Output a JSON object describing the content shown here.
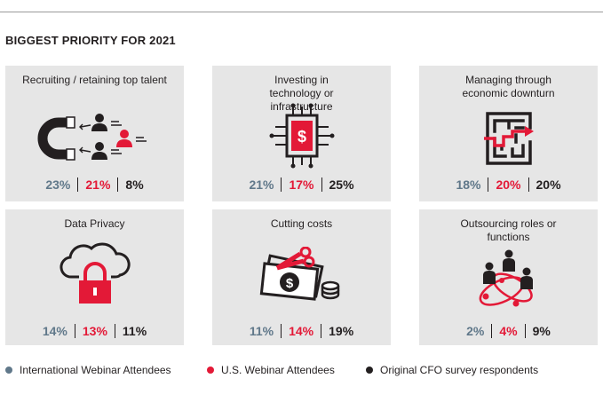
{
  "heading": "BIGGEST PRIORITY FOR 2021",
  "colors": {
    "international": "#60788a",
    "us": "#e31937",
    "original": "#231f20",
    "panel_bg": "#e6e6e6"
  },
  "chart_data": {
    "type": "table",
    "title": "BIGGEST PRIORITY FOR 2021",
    "unit": "%",
    "series": [
      {
        "name": "International Webinar Attendees",
        "color": "#60788a",
        "values": [
          23,
          21,
          18,
          14,
          11,
          2
        ]
      },
      {
        "name": "U.S. Webinar Attendees",
        "color": "#e31937",
        "values": [
          21,
          17,
          20,
          13,
          14,
          4
        ]
      },
      {
        "name": "Original CFO survey respondents",
        "color": "#231f20",
        "values": [
          8,
          25,
          20,
          11,
          19,
          9
        ]
      }
    ],
    "categories": [
      {
        "title": "Recruiting / retaining top talent",
        "icon": "magnet-people-icon",
        "stats": [
          "23%",
          "21%",
          "8%"
        ]
      },
      {
        "title": "Investing in technology or infrastructure",
        "icon": "chip-dollar-icon",
        "stats": [
          "21%",
          "17%",
          "25%"
        ]
      },
      {
        "title": "Managing through economic downturn",
        "icon": "maze-icon",
        "stats": [
          "18%",
          "20%",
          "20%"
        ]
      },
      {
        "title": "Data Privacy",
        "icon": "cloud-lock-icon",
        "stats": [
          "14%",
          "13%",
          "11%"
        ]
      },
      {
        "title": "Cutting costs",
        "icon": "scissors-money-icon",
        "stats": [
          "11%",
          "14%",
          "19%"
        ]
      },
      {
        "title": "Outsourcing roles or functions",
        "icon": "people-network-icon",
        "stats": [
          "2%",
          "4%",
          "9%"
        ]
      }
    ],
    "legend": [
      {
        "label": "International Webinar Attendees",
        "color": "#60788a"
      },
      {
        "label": "U.S. Webinar Attendees",
        "color": "#e31937"
      },
      {
        "label": "Original CFO survey respondents",
        "color": "#231f20"
      }
    ]
  }
}
